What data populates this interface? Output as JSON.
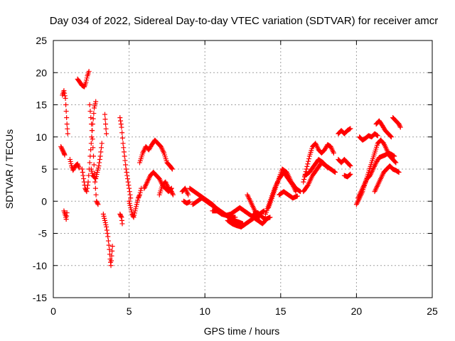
{
  "chart_data": {
    "type": "scatter",
    "title": "Day 034 of 2022, Sidereal Day-to-day VTEC variation (SDTVAR) for receiver amcr",
    "xlabel": "GPS time / hours",
    "ylabel": "SDTVAR / TECUs",
    "xlim": [
      0,
      25
    ],
    "ylim": [
      -15,
      25
    ],
    "xticks": [
      0,
      5,
      10,
      15,
      20,
      25
    ],
    "yticks": [
      -15,
      -10,
      -5,
      0,
      5,
      10,
      15,
      20,
      25
    ],
    "grid": true,
    "marker": "+",
    "colors": {
      "series": "#ff0000",
      "grid": "#a0a0a0",
      "axes": "#000000"
    },
    "segments": [
      [
        [
          0.6,
          16.5
        ],
        [
          0.7,
          17.2
        ],
        [
          0.8,
          16.0
        ],
        [
          0.85,
          14.0
        ],
        [
          0.9,
          12.0
        ],
        [
          0.95,
          10.5
        ]
      ],
      [
        [
          0.5,
          8.5
        ],
        [
          0.6,
          8.0
        ],
        [
          0.7,
          7.5
        ],
        [
          0.75,
          7.2
        ]
      ],
      [
        [
          0.7,
          -1.5
        ],
        [
          0.8,
          -2.2
        ],
        [
          0.85,
          -2.8
        ],
        [
          0.9,
          -1.8
        ]
      ],
      [
        [
          1.1,
          6.5
        ],
        [
          1.2,
          5.5
        ],
        [
          1.3,
          4.8
        ],
        [
          1.45,
          5.5
        ],
        [
          1.6,
          5.8
        ],
        [
          1.7,
          5.2
        ]
      ],
      [
        [
          1.6,
          19.0
        ],
        [
          1.75,
          18.5
        ],
        [
          1.9,
          18.0
        ],
        [
          2.05,
          17.8
        ],
        [
          2.15,
          18.5
        ],
        [
          2.25,
          19.5
        ],
        [
          2.35,
          20.2
        ]
      ],
      [
        [
          1.9,
          5.0
        ],
        [
          2.0,
          3.5
        ],
        [
          2.1,
          2.0
        ],
        [
          2.2,
          1.5
        ],
        [
          2.3,
          3.0
        ],
        [
          2.4,
          6.0
        ],
        [
          2.5,
          9.0
        ],
        [
          2.6,
          12.0
        ],
        [
          2.7,
          14.5
        ],
        [
          2.8,
          15.5
        ]
      ],
      [
        [
          2.4,
          15.0
        ],
        [
          2.55,
          11.0
        ],
        [
          2.65,
          7.0
        ],
        [
          2.75,
          3.0
        ],
        [
          2.85,
          0.0
        ],
        [
          2.95,
          -0.5
        ]
      ],
      [
        [
          2.5,
          5.0
        ],
        [
          2.6,
          4.0
        ],
        [
          2.8,
          3.5
        ],
        [
          2.9,
          4.5
        ],
        [
          3.0,
          5.5
        ],
        [
          3.1,
          7.0
        ],
        [
          3.2,
          9.0
        ]
      ],
      [
        [
          3.3,
          -2.0
        ],
        [
          3.4,
          -3.0
        ],
        [
          3.5,
          -4.0
        ],
        [
          3.6,
          -5.5
        ],
        [
          3.7,
          -7.5
        ],
        [
          3.75,
          -9.0
        ],
        [
          3.8,
          -10.0
        ],
        [
          3.85,
          -8.5
        ],
        [
          3.9,
          -7.0
        ]
      ],
      [
        [
          3.4,
          13.5
        ],
        [
          3.45,
          12.0
        ],
        [
          3.5,
          10.5
        ]
      ],
      [
        [
          4.4,
          13.0
        ],
        [
          4.5,
          11.5
        ],
        [
          4.6,
          9.0
        ],
        [
          4.7,
          7.0
        ],
        [
          4.8,
          5.0
        ],
        [
          4.9,
          3.5
        ],
        [
          5.0,
          2.0
        ],
        [
          5.1,
          0.5
        ]
      ],
      [
        [
          4.4,
          -2.0
        ],
        [
          4.5,
          -2.5
        ],
        [
          4.55,
          -3.5
        ]
      ],
      [
        [
          5.0,
          0.0
        ],
        [
          5.1,
          -1.0
        ],
        [
          5.2,
          -2.0
        ],
        [
          5.3,
          -2.5
        ],
        [
          5.4,
          -1.5
        ],
        [
          5.5,
          -0.5
        ],
        [
          5.6,
          0.5
        ],
        [
          5.7,
          1.0
        ],
        [
          5.8,
          2.0
        ]
      ],
      [
        [
          5.7,
          6.0
        ],
        [
          5.9,
          7.5
        ],
        [
          6.1,
          8.5
        ],
        [
          6.3,
          8.0
        ],
        [
          6.5,
          8.8
        ],
        [
          6.7,
          9.5
        ],
        [
          6.9,
          9.0
        ],
        [
          7.1,
          8.5
        ],
        [
          7.3,
          7.5
        ],
        [
          7.5,
          6.0
        ],
        [
          7.7,
          5.5
        ],
        [
          7.85,
          5.0
        ]
      ],
      [
        [
          6.0,
          2.0
        ],
        [
          6.2,
          3.0
        ],
        [
          6.4,
          4.0
        ],
        [
          6.6,
          4.5
        ],
        [
          6.8,
          4.0
        ],
        [
          7.0,
          3.5
        ],
        [
          7.2,
          2.5
        ],
        [
          7.4,
          2.0
        ],
        [
          7.6,
          1.5
        ],
        [
          7.8,
          2.0
        ]
      ],
      [
        [
          7.0,
          1.0
        ],
        [
          7.2,
          2.5
        ],
        [
          7.4,
          3.0
        ],
        [
          7.6,
          2.0
        ],
        [
          7.8,
          1.5
        ],
        [
          7.9,
          1.0
        ]
      ],
      [
        [
          8.5,
          1.5
        ],
        [
          8.7,
          2.0
        ],
        [
          8.9,
          1.0
        ]
      ],
      [
        [
          8.6,
          0.0
        ],
        [
          8.8,
          -0.3
        ],
        [
          9.0,
          -0.1
        ]
      ],
      [
        [
          9.0,
          2.0
        ],
        [
          9.3,
          1.5
        ],
        [
          9.6,
          1.0
        ],
        [
          9.9,
          0.5
        ],
        [
          10.2,
          0.0
        ],
        [
          10.5,
          -0.5
        ],
        [
          10.8,
          -1.2
        ],
        [
          11.1,
          -1.8
        ],
        [
          11.4,
          -2.2
        ],
        [
          11.7,
          -2.5
        ],
        [
          12.0,
          -2.5
        ]
      ],
      [
        [
          9.2,
          -0.5
        ],
        [
          9.5,
          0.0
        ],
        [
          9.8,
          0.5
        ],
        [
          10.1,
          0.0
        ],
        [
          10.4,
          -0.5
        ],
        [
          10.7,
          -1.0
        ],
        [
          11.0,
          -1.5
        ],
        [
          11.3,
          -2.0
        ],
        [
          11.6,
          -2.5
        ],
        [
          11.9,
          -3.0
        ],
        [
          12.2,
          -3.2
        ],
        [
          12.5,
          -3.5
        ]
      ],
      [
        [
          10.5,
          -1.5
        ],
        [
          10.8,
          -1.5
        ],
        [
          11.1,
          -2.0
        ],
        [
          11.4,
          -2.2
        ],
        [
          11.7,
          -2.0
        ],
        [
          12.0,
          -1.5
        ],
        [
          12.3,
          -1.0
        ],
        [
          12.6,
          -1.5
        ],
        [
          12.9,
          -2.0
        ],
        [
          13.2,
          -2.5
        ],
        [
          13.5,
          -3.0
        ],
        [
          13.8,
          -3.5
        ],
        [
          14.0,
          -3.0
        ]
      ],
      [
        [
          11.5,
          -3.0
        ],
        [
          11.8,
          -3.5
        ],
        [
          12.1,
          -3.8
        ],
        [
          12.4,
          -4.0
        ],
        [
          12.7,
          -3.5
        ],
        [
          13.0,
          -3.0
        ],
        [
          13.3,
          -2.5
        ],
        [
          13.6,
          -2.0
        ],
        [
          13.9,
          -1.5
        ]
      ],
      [
        [
          12.8,
          1.0
        ],
        [
          13.0,
          0.0
        ],
        [
          13.2,
          -1.0
        ],
        [
          13.4,
          -2.0
        ],
        [
          13.6,
          -2.5
        ]
      ],
      [
        [
          13.2,
          -2.0
        ],
        [
          13.5,
          -1.8
        ],
        [
          13.8,
          -2.5
        ],
        [
          14.0,
          -2.8
        ],
        [
          14.3,
          -2.5
        ]
      ],
      [
        [
          14.0,
          -2.0
        ],
        [
          14.3,
          0.0
        ],
        [
          14.6,
          2.0
        ],
        [
          14.9,
          3.5
        ],
        [
          15.2,
          4.5
        ],
        [
          15.5,
          3.5
        ],
        [
          15.8,
          2.5
        ],
        [
          16.0,
          1.5
        ]
      ],
      [
        [
          14.2,
          -1.0
        ],
        [
          14.5,
          1.0
        ],
        [
          14.8,
          3.0
        ],
        [
          15.1,
          5.0
        ],
        [
          15.4,
          4.5
        ],
        [
          15.7,
          3.0
        ],
        [
          16.0,
          2.0
        ],
        [
          16.3,
          1.5
        ]
      ],
      [
        [
          14.9,
          1.0
        ],
        [
          15.2,
          1.5
        ],
        [
          15.5,
          1.0
        ],
        [
          15.8,
          0.5
        ],
        [
          16.1,
          0.8
        ]
      ],
      [
        [
          16.5,
          3.0
        ],
        [
          16.7,
          5.0
        ],
        [
          16.9,
          7.0
        ],
        [
          17.1,
          8.5
        ],
        [
          17.3,
          9.0
        ],
        [
          17.5,
          8.0
        ],
        [
          17.7,
          7.5
        ],
        [
          17.9,
          8.0
        ],
        [
          18.1,
          8.8
        ],
        [
          18.3,
          8.5
        ],
        [
          18.5,
          7.5
        ]
      ],
      [
        [
          16.5,
          1.5
        ],
        [
          16.8,
          2.5
        ],
        [
          17.1,
          4.0
        ],
        [
          17.4,
          5.0
        ],
        [
          17.7,
          6.0
        ],
        [
          18.0,
          5.5
        ],
        [
          18.3,
          5.0
        ],
        [
          18.6,
          4.5
        ]
      ],
      [
        [
          16.6,
          4.0
        ],
        [
          16.9,
          4.5
        ],
        [
          17.2,
          5.5
        ],
        [
          17.5,
          6.5
        ],
        [
          17.8,
          6.0
        ],
        [
          18.1,
          5.2
        ]
      ],
      [
        [
          18.8,
          10.5
        ],
        [
          19.0,
          11.0
        ],
        [
          19.2,
          10.5
        ],
        [
          19.4,
          11.0
        ],
        [
          19.6,
          11.3
        ]
      ],
      [
        [
          18.8,
          6.5
        ],
        [
          19.0,
          6.0
        ],
        [
          19.2,
          6.5
        ],
        [
          19.4,
          6.0
        ],
        [
          19.6,
          5.5
        ]
      ],
      [
        [
          19.2,
          4.0
        ],
        [
          19.4,
          3.8
        ],
        [
          19.6,
          4.2
        ]
      ],
      [
        [
          20.0,
          -0.5
        ],
        [
          20.2,
          0.5
        ],
        [
          20.4,
          1.5
        ],
        [
          20.6,
          3.0
        ],
        [
          20.8,
          4.5
        ],
        [
          21.0,
          6.0
        ],
        [
          21.2,
          7.5
        ],
        [
          21.4,
          9.0
        ],
        [
          21.6,
          9.5
        ],
        [
          21.8,
          9.0
        ],
        [
          22.0,
          8.0
        ],
        [
          22.2,
          7.0
        ],
        [
          22.4,
          6.5
        ],
        [
          22.6,
          6.0
        ]
      ],
      [
        [
          20.1,
          0.5
        ],
        [
          20.3,
          1.5
        ],
        [
          20.5,
          2.5
        ],
        [
          20.7,
          3.5
        ],
        [
          20.9,
          4.0
        ],
        [
          21.1,
          5.0
        ],
        [
          21.3,
          6.0
        ],
        [
          21.5,
          6.8
        ],
        [
          21.7,
          7.0
        ],
        [
          21.9,
          7.2
        ],
        [
          22.1,
          7.5
        ],
        [
          22.3,
          7.3
        ],
        [
          22.5,
          7.0
        ]
      ],
      [
        [
          21.2,
          1.5
        ],
        [
          21.4,
          2.5
        ],
        [
          21.6,
          3.5
        ],
        [
          21.8,
          4.5
        ],
        [
          22.0,
          5.0
        ],
        [
          22.2,
          5.5
        ],
        [
          22.4,
          5.0
        ],
        [
          22.6,
          4.8
        ],
        [
          22.8,
          4.5
        ]
      ],
      [
        [
          20.2,
          10.0
        ],
        [
          20.4,
          9.5
        ],
        [
          20.6,
          9.8
        ],
        [
          20.8,
          10.2
        ],
        [
          21.0,
          10.0
        ],
        [
          21.2,
          10.5
        ],
        [
          21.4,
          10.2
        ]
      ],
      [
        [
          21.3,
          12.0
        ],
        [
          21.5,
          12.5
        ],
        [
          21.7,
          11.8
        ],
        [
          21.9,
          11.0
        ],
        [
          22.1,
          10.5
        ],
        [
          22.3,
          10.0
        ]
      ],
      [
        [
          22.4,
          13.0
        ],
        [
          22.6,
          12.5
        ],
        [
          22.8,
          12.0
        ],
        [
          22.9,
          11.5
        ]
      ]
    ]
  }
}
